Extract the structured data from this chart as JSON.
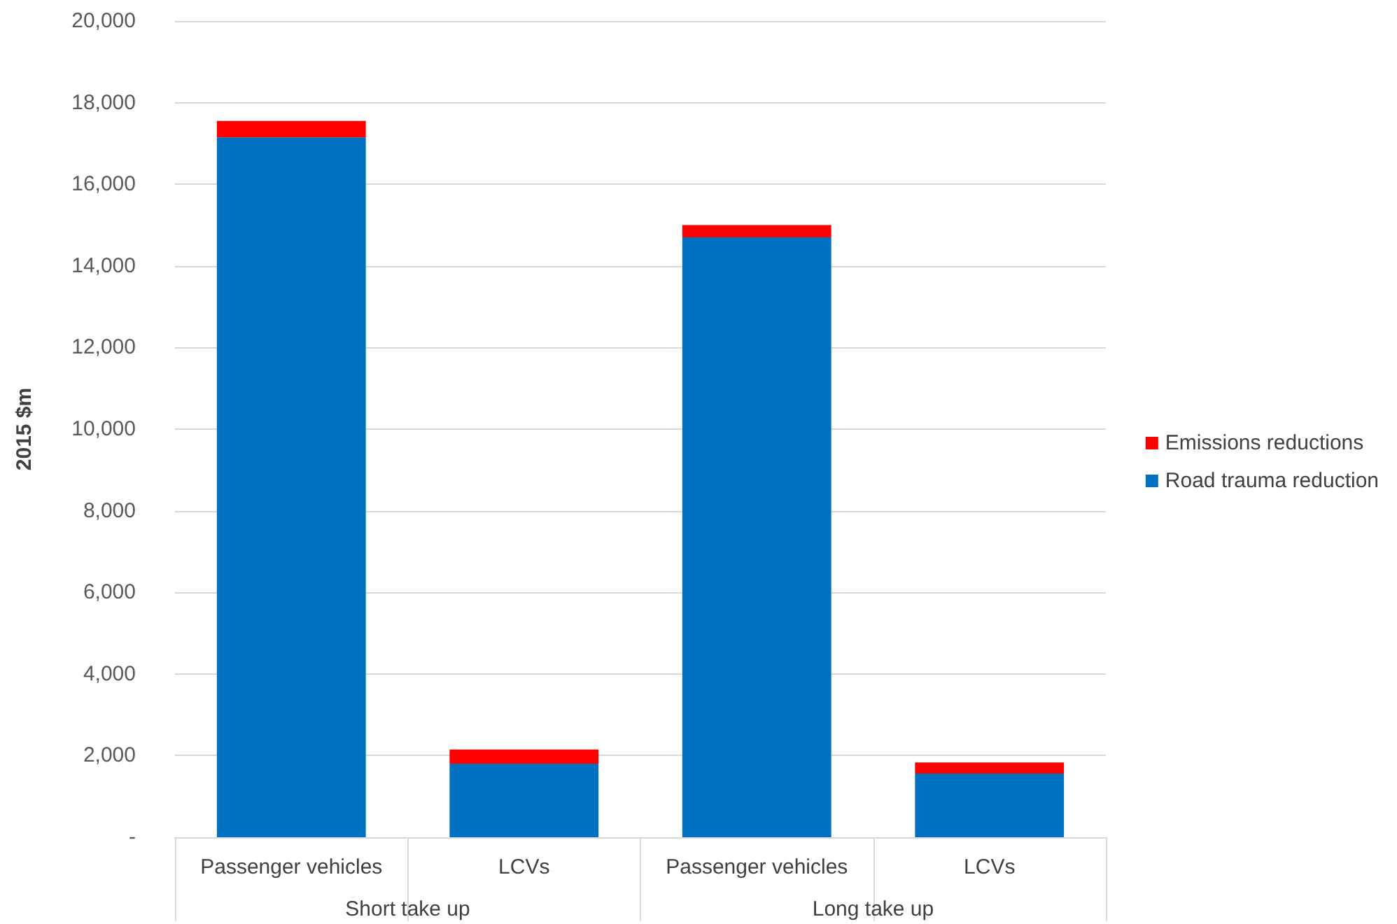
{
  "chart_data": {
    "type": "bar",
    "ylabel": "2015 $m",
    "stacked": true,
    "categories": [
      "Passenger vehicles",
      "LCVs",
      "Passenger vehicles",
      "LCVs"
    ],
    "annotations": [
      "Short take up",
      "Long take up"
    ],
    "series": [
      {
        "name": "Road trauma reduction",
        "color": "#0070c0",
        "values": [
          17150,
          1800,
          14700,
          1560
        ]
      },
      {
        "name": "Emissions reductions",
        "color": "#ff0000",
        "values": [
          400,
          350,
          300,
          270
        ]
      }
    ],
    "ylim": [
      0,
      20000
    ],
    "yticks": [
      {
        "value": 0,
        "label": "-"
      },
      {
        "value": 2000,
        "label": "2,000"
      },
      {
        "value": 4000,
        "label": "4,000"
      },
      {
        "value": 6000,
        "label": "6,000"
      },
      {
        "value": 8000,
        "label": "8,000"
      },
      {
        "value": 10000,
        "label": "10,000"
      },
      {
        "value": 12000,
        "label": "12,000"
      },
      {
        "value": 14000,
        "label": "14,000"
      },
      {
        "value": 16000,
        "label": "16,000"
      },
      {
        "value": 18000,
        "label": "18,000"
      },
      {
        "value": 20000,
        "label": "20,000"
      }
    ],
    "grid": "y",
    "legend": "right"
  }
}
